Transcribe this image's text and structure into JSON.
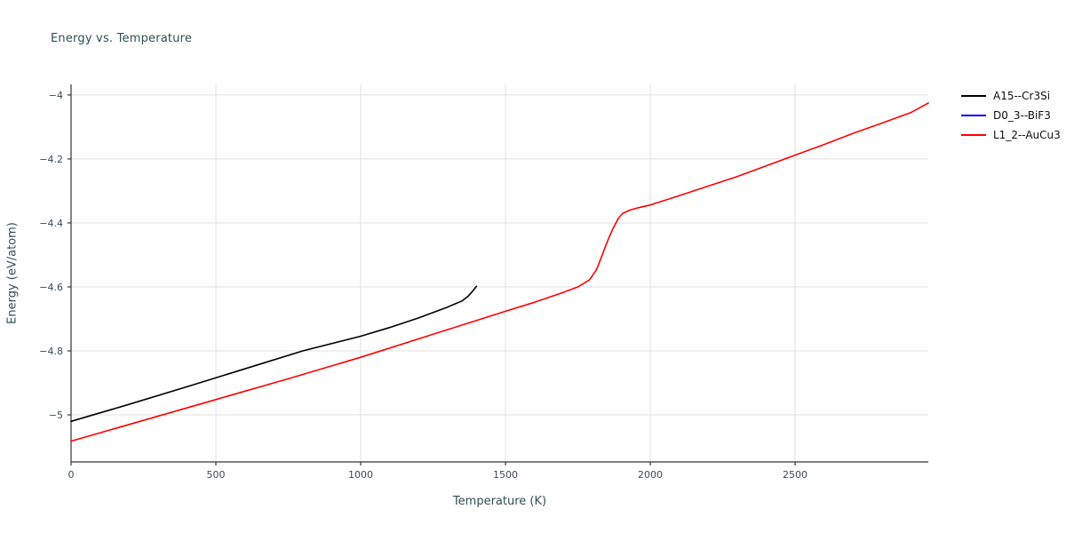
{
  "title": "Energy vs. Temperature",
  "axes": {
    "x_label": "Temperature (K)",
    "y_label": "Energy (eV/atom)"
  },
  "colors": {
    "grid": "#e0e0e0",
    "axis": "#333333",
    "tick_text": "#3b4a54",
    "title_text": "#2f4f4f"
  },
  "chart_data": {
    "type": "line",
    "title": "Energy vs. Temperature",
    "xlabel": "Temperature (K)",
    "ylabel": "Energy (eV/atom)",
    "xlim": [
      0,
      2960
    ],
    "ylim": [
      -5.147,
      -3.967
    ],
    "x_ticks": [
      0,
      500,
      1000,
      1500,
      2000,
      2500
    ],
    "y_ticks": [
      -4,
      -4.2,
      -4.4,
      -4.6,
      -4.8,
      -5
    ],
    "grid": true,
    "legend_position": "top-right-outside",
    "series": [
      {
        "name": "A15--Cr3Si",
        "color": "#000000",
        "points": [
          [
            0,
            -5.02
          ],
          [
            200,
            -4.967
          ],
          [
            400,
            -4.912
          ],
          [
            600,
            -4.856
          ],
          [
            800,
            -4.8
          ],
          [
            1000,
            -4.754
          ],
          [
            1100,
            -4.727
          ],
          [
            1200,
            -4.697
          ],
          [
            1300,
            -4.663
          ],
          [
            1350,
            -4.644
          ],
          [
            1370,
            -4.63
          ],
          [
            1385,
            -4.615
          ],
          [
            1400,
            -4.598
          ]
        ]
      },
      {
        "name": "D0_3--BiF3",
        "color": "#0000ff",
        "points": []
      },
      {
        "name": "L1_2--AuCu3",
        "color": "#ff0000",
        "points": [
          [
            0,
            -5.082
          ],
          [
            250,
            -5.017
          ],
          [
            500,
            -4.952
          ],
          [
            750,
            -4.887
          ],
          [
            1000,
            -4.82
          ],
          [
            1250,
            -4.748
          ],
          [
            1500,
            -4.676
          ],
          [
            1600,
            -4.648
          ],
          [
            1700,
            -4.617
          ],
          [
            1750,
            -4.6
          ],
          [
            1790,
            -4.578
          ],
          [
            1800,
            -4.565
          ],
          [
            1815,
            -4.545
          ],
          [
            1830,
            -4.51
          ],
          [
            1850,
            -4.462
          ],
          [
            1870,
            -4.42
          ],
          [
            1890,
            -4.385
          ],
          [
            1905,
            -4.37
          ],
          [
            1930,
            -4.36
          ],
          [
            1960,
            -4.352
          ],
          [
            2000,
            -4.344
          ],
          [
            2100,
            -4.315
          ],
          [
            2200,
            -4.285
          ],
          [
            2300,
            -4.255
          ],
          [
            2400,
            -4.222
          ],
          [
            2500,
            -4.188
          ],
          [
            2600,
            -4.155
          ],
          [
            2700,
            -4.12
          ],
          [
            2800,
            -4.088
          ],
          [
            2900,
            -4.055
          ],
          [
            2960,
            -4.025
          ]
        ]
      }
    ]
  }
}
